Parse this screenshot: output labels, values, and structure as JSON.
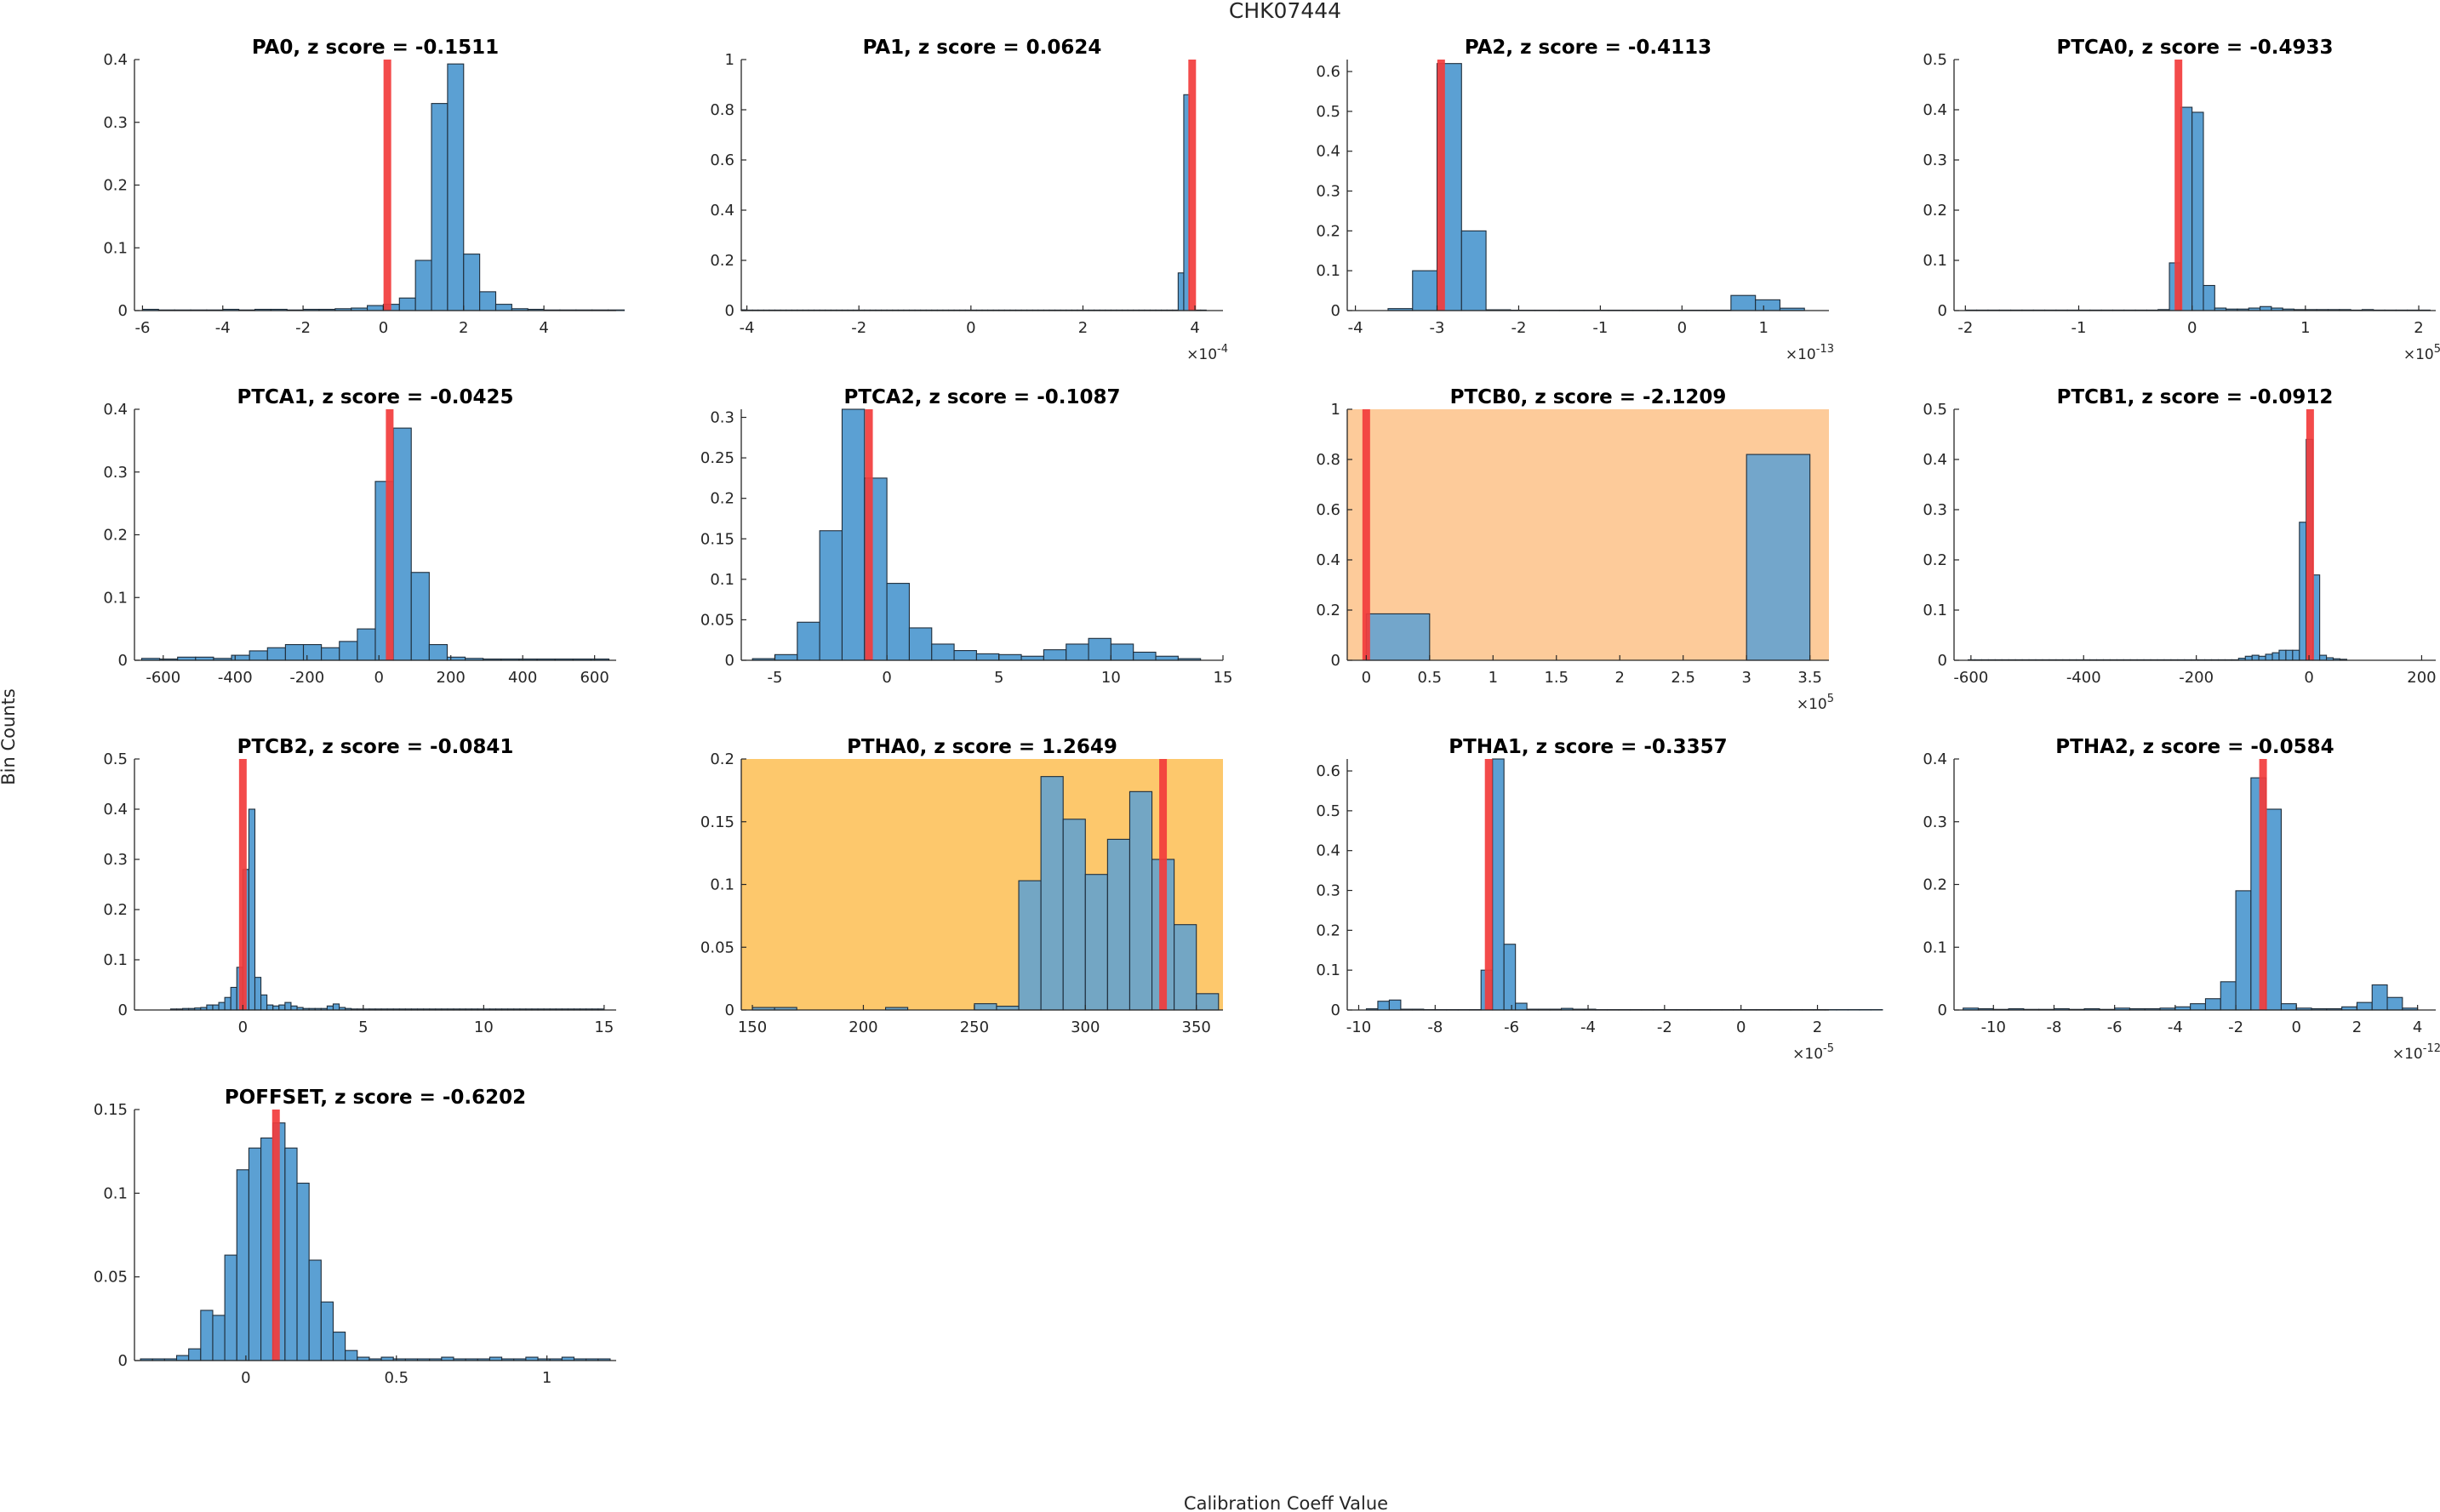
{
  "figure": {
    "title": "CHK07444",
    "xlabel": "Calibration Coeff Value",
    "ylabel": "Bin Counts"
  },
  "colors": {
    "bar_fill": "#5BA0D3",
    "bar_edge": "#1f2d3a",
    "marker": "#f23c3c",
    "highlight_light": "#fdcb9a",
    "highlight_strong": "#fdc86c",
    "axis": "#262626"
  },
  "chart_data": [
    {
      "type": "bar",
      "title": "PA0, z score = -0.1511",
      "highlight": "none",
      "xlim": [
        -6.2,
        5.8
      ],
      "ylim": [
        0,
        0.4
      ],
      "xticks": [
        -6,
        -4,
        -2,
        0,
        2,
        4
      ],
      "xtick_labels": [
        "-6",
        "-4",
        "-2",
        "0",
        "2",
        "4"
      ],
      "yticks": [
        0,
        0.1,
        0.2,
        0.3,
        0.4
      ],
      "ytick_labels": [
        "0",
        "0.1",
        "0.2",
        "0.3",
        "0.4"
      ],
      "x_exponent": null,
      "marker_x": 0.1,
      "bins": {
        "start": -6.0,
        "width": 0.4,
        "values": [
          0.002,
          0.001,
          0.001,
          0.001,
          0.001,
          0.002,
          0.001,
          0.002,
          0.002,
          0.001,
          0.002,
          0.002,
          0.003,
          0.004,
          0.008,
          0.01,
          0.02,
          0.08,
          0.33,
          0.393,
          0.09,
          0.03,
          0.01,
          0.003,
          0.002,
          0.001,
          0.001,
          0.001,
          0.001,
          0.001
        ]
      }
    },
    {
      "type": "bar",
      "title": "PA1, z score = 0.0624",
      "highlight": "none",
      "xlim": [
        -4.1,
        4.5
      ],
      "ylim": [
        0,
        1
      ],
      "xticks": [
        -4,
        -2,
        0,
        2,
        4
      ],
      "xtick_labels": [
        "-4",
        "-2",
        "0",
        "2",
        "4"
      ],
      "yticks": [
        0,
        0.2,
        0.4,
        0.6,
        0.8,
        1
      ],
      "ytick_labels": [
        "0",
        "0.2",
        "0.4",
        "0.6",
        "0.8",
        "1"
      ],
      "x_exponent": "-4",
      "marker_x": 3.95,
      "bins": {
        "start": -4.1,
        "width": 0.1,
        "values": [
          0.003,
          0.002,
          0.002,
          0.002,
          0.002,
          0.002,
          0.002,
          0.002,
          0.002,
          0.002,
          0.002,
          0.002,
          0.002,
          0.002,
          0.002,
          0.002,
          0.002,
          0.002,
          0.002,
          0.002,
          0.002,
          0.002,
          0.002,
          0.002,
          0.002,
          0.002,
          0.002,
          0.002,
          0.002,
          0.002,
          0.002,
          0.002,
          0.002,
          0.002,
          0.002,
          0.002,
          0.002,
          0.002,
          0.002,
          0.002,
          0.002,
          0.002,
          0.002,
          0.002,
          0.002,
          0.002,
          0.002,
          0.002,
          0.002,
          0.002,
          0.002,
          0.002,
          0.002,
          0.002,
          0.002,
          0.002,
          0.002,
          0.002,
          0.002,
          0.002,
          0.002,
          0.002,
          0.002,
          0.002,
          0.002,
          0.002,
          0.002,
          0.002,
          0.002,
          0.002,
          0.002,
          0.002,
          0.002,
          0.002,
          0.002,
          0.002,
          0.002,
          0.002,
          0.15,
          0.86,
          0.002,
          0.002,
          0.002
        ]
      }
    },
    {
      "type": "bar",
      "title": "PA2, z score = -0.4113",
      "highlight": "none",
      "xlim": [
        -4.1,
        1.8
      ],
      "ylim": [
        0,
        0.63
      ],
      "xticks": [
        -4,
        -3,
        -2,
        -1,
        0,
        1
      ],
      "xtick_labels": [
        "-4",
        "-3",
        "-2",
        "-1",
        "0",
        "1"
      ],
      "yticks": [
        0,
        0.1,
        0.2,
        0.3,
        0.4,
        0.5,
        0.6
      ],
      "ytick_labels": [
        "0",
        "0.1",
        "0.2",
        "0.3",
        "0.4",
        "0.5",
        "0.6"
      ],
      "x_exponent": "-13",
      "marker_x": -2.95,
      "bins": {
        "start": -3.6,
        "width": 0.3,
        "values": [
          0.005,
          0.1,
          0.62,
          0.2,
          0.002,
          0.001,
          0.001,
          0.001,
          0.001,
          0.001,
          0.001,
          0.001,
          0.001,
          0.001,
          0.038,
          0.027,
          0.006
        ]
      }
    },
    {
      "type": "bar",
      "title": "PTCA0, z score = -0.4933",
      "highlight": "none",
      "xlim": [
        -2.1,
        2.15
      ],
      "ylim": [
        0,
        0.5
      ],
      "xticks": [
        -2,
        -1,
        0,
        1,
        2
      ],
      "xtick_labels": [
        "-2",
        "-1",
        "0",
        "1",
        "2"
      ],
      "yticks": [
        0,
        0.1,
        0.2,
        0.3,
        0.4,
        0.5
      ],
      "ytick_labels": [
        "0",
        "0.1",
        "0.2",
        "0.3",
        "0.4",
        "0.5"
      ],
      "x_exponent": "5",
      "marker_x": -0.12,
      "bins": {
        "start": -2.0,
        "width": 0.1,
        "values": [
          0.001,
          0.001,
          0.001,
          0.001,
          0.001,
          0.001,
          0.001,
          0.001,
          0.001,
          0.001,
          0.001,
          0.001,
          0.001,
          0.001,
          0.001,
          0.001,
          0.001,
          0.002,
          0.095,
          0.405,
          0.395,
          0.05,
          0.005,
          0.003,
          0.003,
          0.005,
          0.008,
          0.005,
          0.003,
          0.002,
          0.002,
          0.002,
          0.002,
          0.002,
          0.001,
          0.002,
          0.001,
          0.001,
          0.001,
          0.001,
          0.001
        ]
      }
    },
    {
      "type": "bar",
      "title": "PTCA1, z score = -0.0425",
      "highlight": "none",
      "xlim": [
        -680,
        660
      ],
      "ylim": [
        0,
        0.4
      ],
      "xticks": [
        -600,
        -400,
        -200,
        0,
        200,
        400,
        600
      ],
      "xtick_labels": [
        "-600",
        "-400",
        "-200",
        "0",
        "200",
        "400",
        "600"
      ],
      "yticks": [
        0,
        0.1,
        0.2,
        0.3,
        0.4
      ],
      "ytick_labels": [
        "0",
        "0.1",
        "0.2",
        "0.3",
        "0.4"
      ],
      "x_exponent": null,
      "marker_x": 30,
      "bins": {
        "start": -660,
        "width": 50,
        "values": [
          0.003,
          0.002,
          0.005,
          0.005,
          0.003,
          0.008,
          0.015,
          0.02,
          0.025,
          0.025,
          0.02,
          0.03,
          0.05,
          0.285,
          0.37,
          0.14,
          0.025,
          0.005,
          0.003,
          0.002,
          0.002,
          0.002,
          0.002,
          0.002,
          0.002,
          0.002
        ]
      }
    },
    {
      "type": "bar",
      "title": "PTCA2, z score = -0.1087",
      "highlight": "none",
      "xlim": [
        -6.5,
        15
      ],
      "ylim": [
        0,
        0.31
      ],
      "xticks": [
        -5,
        0,
        5,
        10,
        15
      ],
      "xtick_labels": [
        "-5",
        "0",
        "5",
        "10",
        "15"
      ],
      "yticks": [
        0,
        0.05,
        0.1,
        0.15,
        0.2,
        0.25,
        0.3
      ],
      "ytick_labels": [
        "0",
        "0.05",
        "0.1",
        "0.15",
        "0.2",
        "0.25",
        "0.3"
      ],
      "x_exponent": null,
      "marker_x": -0.8,
      "bins": {
        "start": -6.0,
        "width": 1.0,
        "values": [
          0.002,
          0.007,
          0.047,
          0.16,
          0.31,
          0.225,
          0.095,
          0.04,
          0.02,
          0.012,
          0.008,
          0.007,
          0.005,
          0.013,
          0.02,
          0.027,
          0.02,
          0.01,
          0.005,
          0.002
        ]
      }
    },
    {
      "type": "bar",
      "title": "PTCB0, z score = -2.1209",
      "highlight": "light",
      "xlim": [
        -0.15,
        3.65
      ],
      "ylim": [
        0,
        1
      ],
      "xticks": [
        0,
        0.5,
        1,
        1.5,
        2,
        2.5,
        3,
        3.5
      ],
      "xtick_labels": [
        "0",
        "0.5",
        "1",
        "1.5",
        "2",
        "2.5",
        "3",
        "3.5"
      ],
      "yticks": [
        0,
        0.2,
        0.4,
        0.6,
        0.8,
        1
      ],
      "ytick_labels": [
        "0",
        "0.2",
        "0.4",
        "0.6",
        "0.8",
        "1"
      ],
      "x_exponent": "5",
      "marker_x": 0,
      "bins": {
        "start": 0,
        "width": 0.5,
        "values": [
          0.185,
          0,
          0,
          0,
          0,
          0,
          0.82
        ]
      }
    },
    {
      "type": "bar",
      "title": "PTCB1, z score = -0.0912",
      "highlight": "none",
      "xlim": [
        -630,
        225
      ],
      "ylim": [
        0,
        0.5
      ],
      "xticks": [
        -600,
        -400,
        -200,
        0,
        200
      ],
      "xtick_labels": [
        "-600",
        "-400",
        "-200",
        "0",
        "200"
      ],
      "yticks": [
        0,
        0.1,
        0.2,
        0.3,
        0.4,
        0.5
      ],
      "ytick_labels": [
        "0",
        "0.1",
        "0.2",
        "0.3",
        "0.4",
        "0.5"
      ],
      "x_exponent": null,
      "marker_x": 2,
      "bins": {
        "start": -605,
        "width": 12,
        "values": [
          0.001,
          0.001,
          0.001,
          0.001,
          0.001,
          0.001,
          0.001,
          0.001,
          0.001,
          0.001,
          0.001,
          0.001,
          0.001,
          0.001,
          0.001,
          0.001,
          0.001,
          0.001,
          0.001,
          0.001,
          0.001,
          0.001,
          0.001,
          0.001,
          0.001,
          0.001,
          0.001,
          0.001,
          0.001,
          0.001,
          0.001,
          0.001,
          0.001,
          0.001,
          0.001,
          0.001,
          0.001,
          0.001,
          0.001,
          0.001,
          0.004,
          0.008,
          0.01,
          0.008,
          0.012,
          0.015,
          0.02,
          0.02,
          0.02,
          0.275,
          0.44,
          0.17,
          0.01,
          0.005,
          0.003,
          0.002
        ]
      }
    },
    {
      "type": "bar",
      "title": "PTCB2, z score = -0.0841",
      "highlight": "none",
      "xlim": [
        -4.5,
        15.5
      ],
      "ylim": [
        0,
        0.5
      ],
      "xticks": [
        0,
        5,
        10,
        15
      ],
      "xtick_labels": [
        "0",
        "5",
        "10",
        "15"
      ],
      "yticks": [
        0,
        0.1,
        0.2,
        0.3,
        0.4,
        0.5
      ],
      "ytick_labels": [
        "0",
        "0.1",
        "0.2",
        "0.3",
        "0.4",
        "0.5"
      ],
      "x_exponent": null,
      "marker_x": 0,
      "bins": {
        "start": -3.0,
        "width": 0.25,
        "values": [
          0.002,
          0.002,
          0.003,
          0.003,
          0.004,
          0.005,
          0.01,
          0.01,
          0.015,
          0.025,
          0.045,
          0.085,
          0.28,
          0.4,
          0.065,
          0.03,
          0.01,
          0.008,
          0.01,
          0.015,
          0.008,
          0.005,
          0.003,
          0.003,
          0.003,
          0.003,
          0.008,
          0.012,
          0.005,
          0.003,
          0.002,
          0.002,
          0.002,
          0.002,
          0.002,
          0.002,
          0.002,
          0.002,
          0.002,
          0.002,
          0.002,
          0.002,
          0.002,
          0.002,
          0.002,
          0.002,
          0.002,
          0.002,
          0.002,
          0.002,
          0.002,
          0.002,
          0.002,
          0.002,
          0.002,
          0.002,
          0.002,
          0.002,
          0.002,
          0.002,
          0.002,
          0.002,
          0.002,
          0.002,
          0.002,
          0.002,
          0.002,
          0.002,
          0.002,
          0.002,
          0.002,
          0.002
        ]
      }
    },
    {
      "type": "bar",
      "title": "PTHA0, z score = 1.2649",
      "highlight": "strong",
      "xlim": [
        145,
        362
      ],
      "ylim": [
        0,
        0.2
      ],
      "xticks": [
        150,
        200,
        250,
        300,
        350
      ],
      "xtick_labels": [
        "150",
        "200",
        "250",
        "300",
        "350"
      ],
      "yticks": [
        0,
        0.05,
        0.1,
        0.15,
        0.2
      ],
      "ytick_labels": [
        "0",
        "0.05",
        "0.1",
        "0.15",
        "0.2"
      ],
      "x_exponent": null,
      "marker_x": 335,
      "bins": {
        "start": 150,
        "width": 10,
        "values": [
          0.002,
          0.002,
          0.0,
          0.0,
          0.0,
          0.0,
          0.002,
          0.0,
          0.0,
          0.0,
          0.005,
          0.003,
          0.103,
          0.186,
          0.152,
          0.108,
          0.136,
          0.174,
          0.12,
          0.068,
          0.013
        ]
      }
    },
    {
      "type": "bar",
      "title": "PTHA1, z score = -0.3357",
      "highlight": "none",
      "xlim": [
        -10.3,
        2.3
      ],
      "ylim": [
        0,
        0.63
      ],
      "xticks": [
        -10,
        -8,
        -6,
        -4,
        -2,
        0,
        2
      ],
      "xtick_labels": [
        "-10",
        "-8",
        "-6",
        "-4",
        "-2",
        "0",
        "2"
      ],
      "yticks": [
        0,
        0.1,
        0.2,
        0.3,
        0.4,
        0.5,
        0.6
      ],
      "ytick_labels": [
        "0",
        "0.1",
        "0.2",
        "0.3",
        "0.4",
        "0.5",
        "0.6"
      ],
      "x_exponent": "-5",
      "marker_x": -6.6,
      "bins": {
        "start": -9.8,
        "width": 0.3,
        "values": [
          0.003,
          0.022,
          0.025,
          0.002,
          0.002,
          0.001,
          0.001,
          0.001,
          0.001,
          0.001,
          0.1,
          0.63,
          0.165,
          0.017,
          0.002,
          0.002,
          0.002,
          0.004,
          0.002,
          0.002,
          0.001,
          0.001,
          0.001,
          0.001,
          0.001,
          0.001,
          0.001,
          0.001,
          0.001,
          0.001,
          0.001,
          0.001,
          0.001,
          0.001,
          0.001,
          0.001,
          0.001,
          0.001,
          0.001,
          0.001,
          0.001,
          0.001,
          0.001,
          0.001,
          0.001
        ]
      }
    },
    {
      "type": "bar",
      "title": "PTHA2, z score = -0.0584",
      "highlight": "none",
      "xlim": [
        -11.3,
        4.6
      ],
      "ylim": [
        0,
        0.4
      ],
      "xticks": [
        -10,
        -8,
        -6,
        -4,
        -2,
        0,
        2,
        4
      ],
      "xtick_labels": [
        "-10",
        "-8",
        "-6",
        "-4",
        "-2",
        "0",
        "2",
        "4"
      ],
      "yticks": [
        0,
        0.1,
        0.2,
        0.3,
        0.4
      ],
      "ytick_labels": [
        "0",
        "0.1",
        "0.2",
        "0.3",
        "0.4"
      ],
      "x_exponent": "-12",
      "marker_x": -1.1,
      "bins": {
        "start": -11.0,
        "width": 0.5,
        "values": [
          0.003,
          0.002,
          0.001,
          0.002,
          0.001,
          0.001,
          0.002,
          0.001,
          0.002,
          0.001,
          0.003,
          0.002,
          0.002,
          0.003,
          0.005,
          0.01,
          0.018,
          0.045,
          0.19,
          0.37,
          0.32,
          0.01,
          0.003,
          0.002,
          0.002,
          0.005,
          0.012,
          0.04,
          0.02,
          0.003
        ]
      }
    },
    {
      "type": "bar",
      "title": "POFFSET, z score = -0.6202",
      "highlight": "none",
      "xlim": [
        -0.37,
        1.23
      ],
      "ylim": [
        0,
        0.15
      ],
      "xticks": [
        0,
        0.5,
        1
      ],
      "xtick_labels": [
        "0",
        "0.5",
        "1"
      ],
      "yticks": [
        0,
        0.05,
        0.1,
        0.15
      ],
      "ytick_labels": [
        "0",
        "0.05",
        "0.1",
        "0.15"
      ],
      "x_exponent": null,
      "marker_x": 0.1,
      "bins": {
        "start": -0.35,
        "width": 0.04,
        "values": [
          0.001,
          0.001,
          0.001,
          0.003,
          0.007,
          0.03,
          0.027,
          0.063,
          0.114,
          0.127,
          0.133,
          0.142,
          0.127,
          0.106,
          0.06,
          0.035,
          0.017,
          0.006,
          0.002,
          0.001,
          0.002,
          0.001,
          0.001,
          0.001,
          0.001,
          0.002,
          0.001,
          0.001,
          0.001,
          0.002,
          0.001,
          0.001,
          0.002,
          0.001,
          0.001,
          0.002,
          0.001,
          0.001,
          0.001
        ]
      }
    }
  ]
}
